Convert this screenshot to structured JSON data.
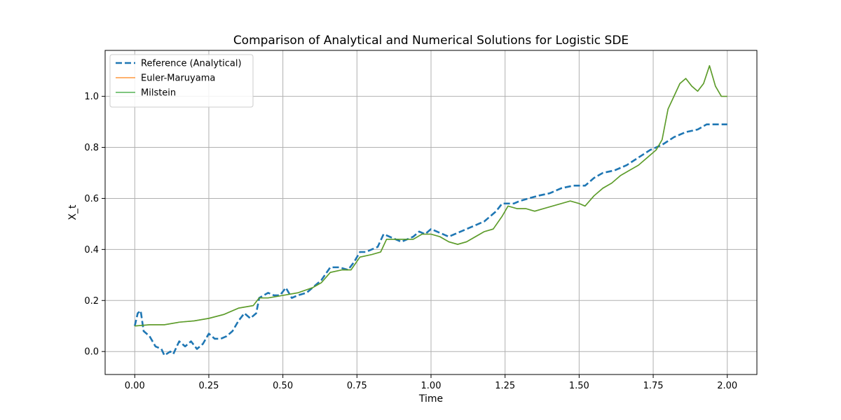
{
  "chart_data": {
    "type": "line",
    "title": "Comparison of Analytical and Numerical Solutions for Logistic SDE",
    "xlabel": "Time",
    "ylabel": "X_t",
    "xlim": [
      -0.1,
      2.1
    ],
    "ylim": [
      -0.09,
      1.18
    ],
    "xticks": [
      0.0,
      0.25,
      0.5,
      0.75,
      1.0,
      1.25,
      1.5,
      1.75,
      2.0
    ],
    "xtick_labels": [
      "0.00",
      "0.25",
      "0.50",
      "0.75",
      "1.00",
      "1.25",
      "1.50",
      "1.75",
      "2.00"
    ],
    "yticks": [
      0.0,
      0.2,
      0.4,
      0.6,
      0.8,
      1.0
    ],
    "ytick_labels": [
      "0.0",
      "0.2",
      "0.4",
      "0.6",
      "0.8",
      "1.0"
    ],
    "grid": true,
    "legend_position": "top-left",
    "series": [
      {
        "name": "Reference (Analytical)",
        "color": "#1f77b4",
        "style": "dashed",
        "points": [
          [
            0.0,
            0.1
          ],
          [
            0.01,
            0.15
          ],
          [
            0.02,
            0.16
          ],
          [
            0.03,
            0.08
          ],
          [
            0.05,
            0.06
          ],
          [
            0.07,
            0.02
          ],
          [
            0.09,
            0.01
          ],
          [
            0.1,
            -0.015
          ],
          [
            0.12,
            0.0
          ],
          [
            0.13,
            -0.01
          ],
          [
            0.15,
            0.04
          ],
          [
            0.17,
            0.02
          ],
          [
            0.19,
            0.04
          ],
          [
            0.21,
            0.01
          ],
          [
            0.23,
            0.03
          ],
          [
            0.25,
            0.07
          ],
          [
            0.27,
            0.05
          ],
          [
            0.29,
            0.05
          ],
          [
            0.31,
            0.06
          ],
          [
            0.33,
            0.08
          ],
          [
            0.35,
            0.12
          ],
          [
            0.37,
            0.15
          ],
          [
            0.39,
            0.13
          ],
          [
            0.41,
            0.15
          ],
          [
            0.42,
            0.21
          ],
          [
            0.45,
            0.23
          ],
          [
            0.47,
            0.22
          ],
          [
            0.49,
            0.22
          ],
          [
            0.51,
            0.25
          ],
          [
            0.53,
            0.21
          ],
          [
            0.55,
            0.22
          ],
          [
            0.58,
            0.23
          ],
          [
            0.6,
            0.25
          ],
          [
            0.63,
            0.28
          ],
          [
            0.66,
            0.33
          ],
          [
            0.69,
            0.33
          ],
          [
            0.72,
            0.32
          ],
          [
            0.74,
            0.35
          ],
          [
            0.76,
            0.39
          ],
          [
            0.78,
            0.39
          ],
          [
            0.8,
            0.4
          ],
          [
            0.82,
            0.41
          ],
          [
            0.84,
            0.46
          ],
          [
            0.86,
            0.45
          ],
          [
            0.88,
            0.44
          ],
          [
            0.9,
            0.43
          ],
          [
            0.92,
            0.44
          ],
          [
            0.94,
            0.45
          ],
          [
            0.96,
            0.47
          ],
          [
            0.98,
            0.46
          ],
          [
            1.0,
            0.48
          ],
          [
            1.02,
            0.47
          ],
          [
            1.04,
            0.46
          ],
          [
            1.06,
            0.45
          ],
          [
            1.08,
            0.46
          ],
          [
            1.1,
            0.47
          ],
          [
            1.12,
            0.48
          ],
          [
            1.14,
            0.49
          ],
          [
            1.16,
            0.5
          ],
          [
            1.18,
            0.51
          ],
          [
            1.2,
            0.53
          ],
          [
            1.22,
            0.55
          ],
          [
            1.24,
            0.58
          ],
          [
            1.26,
            0.58
          ],
          [
            1.28,
            0.58
          ],
          [
            1.3,
            0.59
          ],
          [
            1.33,
            0.6
          ],
          [
            1.36,
            0.61
          ],
          [
            1.4,
            0.62
          ],
          [
            1.44,
            0.64
          ],
          [
            1.48,
            0.65
          ],
          [
            1.52,
            0.65
          ],
          [
            1.55,
            0.68
          ],
          [
            1.58,
            0.7
          ],
          [
            1.62,
            0.71
          ],
          [
            1.66,
            0.73
          ],
          [
            1.7,
            0.76
          ],
          [
            1.74,
            0.79
          ],
          [
            1.78,
            0.81
          ],
          [
            1.82,
            0.84
          ],
          [
            1.86,
            0.86
          ],
          [
            1.9,
            0.87
          ],
          [
            1.93,
            0.89
          ],
          [
            1.96,
            0.89
          ],
          [
            2.0,
            0.89
          ]
        ]
      },
      {
        "name": "Euler-Maruyama",
        "color": "#ff7f0e",
        "style": "solid",
        "points": [
          [
            0.0,
            0.1
          ],
          [
            0.05,
            0.105
          ],
          [
            0.1,
            0.105
          ],
          [
            0.15,
            0.115
          ],
          [
            0.2,
            0.12
          ],
          [
            0.25,
            0.13
          ],
          [
            0.3,
            0.145
          ],
          [
            0.35,
            0.17
          ],
          [
            0.4,
            0.18
          ],
          [
            0.42,
            0.21
          ],
          [
            0.45,
            0.21
          ],
          [
            0.5,
            0.22
          ],
          [
            0.55,
            0.23
          ],
          [
            0.6,
            0.25
          ],
          [
            0.63,
            0.27
          ],
          [
            0.66,
            0.31
          ],
          [
            0.7,
            0.32
          ],
          [
            0.73,
            0.32
          ],
          [
            0.76,
            0.37
          ],
          [
            0.8,
            0.38
          ],
          [
            0.83,
            0.39
          ],
          [
            0.85,
            0.44
          ],
          [
            0.88,
            0.44
          ],
          [
            0.91,
            0.44
          ],
          [
            0.94,
            0.44
          ],
          [
            0.97,
            0.46
          ],
          [
            1.0,
            0.46
          ],
          [
            1.03,
            0.45
          ],
          [
            1.06,
            0.43
          ],
          [
            1.09,
            0.42
          ],
          [
            1.12,
            0.43
          ],
          [
            1.15,
            0.45
          ],
          [
            1.18,
            0.47
          ],
          [
            1.21,
            0.48
          ],
          [
            1.24,
            0.53
          ],
          [
            1.26,
            0.57
          ],
          [
            1.29,
            0.56
          ],
          [
            1.32,
            0.56
          ],
          [
            1.35,
            0.55
          ],
          [
            1.38,
            0.56
          ],
          [
            1.41,
            0.57
          ],
          [
            1.44,
            0.58
          ],
          [
            1.47,
            0.59
          ],
          [
            1.5,
            0.58
          ],
          [
            1.52,
            0.57
          ],
          [
            1.55,
            0.61
          ],
          [
            1.58,
            0.64
          ],
          [
            1.61,
            0.66
          ],
          [
            1.64,
            0.69
          ],
          [
            1.67,
            0.71
          ],
          [
            1.7,
            0.73
          ],
          [
            1.73,
            0.76
          ],
          [
            1.76,
            0.79
          ],
          [
            1.78,
            0.83
          ],
          [
            1.8,
            0.95
          ],
          [
            1.82,
            1.0
          ],
          [
            1.84,
            1.05
          ],
          [
            1.86,
            1.07
          ],
          [
            1.88,
            1.04
          ],
          [
            1.9,
            1.02
          ],
          [
            1.92,
            1.05
          ],
          [
            1.94,
            1.12
          ],
          [
            1.96,
            1.04
          ],
          [
            1.98,
            1.0
          ],
          [
            2.0,
            1.0
          ]
        ]
      },
      {
        "name": "Milstein",
        "color": "#2ca02c",
        "style": "solid",
        "points": [
          [
            0.0,
            0.1
          ],
          [
            0.05,
            0.105
          ],
          [
            0.1,
            0.105
          ],
          [
            0.15,
            0.115
          ],
          [
            0.2,
            0.12
          ],
          [
            0.25,
            0.13
          ],
          [
            0.3,
            0.145
          ],
          [
            0.35,
            0.17
          ],
          [
            0.4,
            0.18
          ],
          [
            0.42,
            0.21
          ],
          [
            0.45,
            0.21
          ],
          [
            0.5,
            0.22
          ],
          [
            0.55,
            0.23
          ],
          [
            0.6,
            0.25
          ],
          [
            0.63,
            0.27
          ],
          [
            0.66,
            0.31
          ],
          [
            0.7,
            0.32
          ],
          [
            0.73,
            0.32
          ],
          [
            0.76,
            0.37
          ],
          [
            0.8,
            0.38
          ],
          [
            0.83,
            0.39
          ],
          [
            0.85,
            0.44
          ],
          [
            0.88,
            0.44
          ],
          [
            0.91,
            0.44
          ],
          [
            0.94,
            0.44
          ],
          [
            0.97,
            0.46
          ],
          [
            1.0,
            0.46
          ],
          [
            1.03,
            0.45
          ],
          [
            1.06,
            0.43
          ],
          [
            1.09,
            0.42
          ],
          [
            1.12,
            0.43
          ],
          [
            1.15,
            0.45
          ],
          [
            1.18,
            0.47
          ],
          [
            1.21,
            0.48
          ],
          [
            1.24,
            0.53
          ],
          [
            1.26,
            0.57
          ],
          [
            1.29,
            0.56
          ],
          [
            1.32,
            0.56
          ],
          [
            1.35,
            0.55
          ],
          [
            1.38,
            0.56
          ],
          [
            1.41,
            0.57
          ],
          [
            1.44,
            0.58
          ],
          [
            1.47,
            0.59
          ],
          [
            1.5,
            0.58
          ],
          [
            1.52,
            0.57
          ],
          [
            1.55,
            0.61
          ],
          [
            1.58,
            0.64
          ],
          [
            1.61,
            0.66
          ],
          [
            1.64,
            0.69
          ],
          [
            1.67,
            0.71
          ],
          [
            1.7,
            0.73
          ],
          [
            1.73,
            0.76
          ],
          [
            1.76,
            0.79
          ],
          [
            1.78,
            0.83
          ],
          [
            1.8,
            0.95
          ],
          [
            1.82,
            1.0
          ],
          [
            1.84,
            1.05
          ],
          [
            1.86,
            1.07
          ],
          [
            1.88,
            1.04
          ],
          [
            1.9,
            1.02
          ],
          [
            1.92,
            1.05
          ],
          [
            1.94,
            1.12
          ],
          [
            1.96,
            1.04
          ],
          [
            1.98,
            1.0
          ],
          [
            2.0,
            1.0
          ]
        ]
      }
    ]
  }
}
